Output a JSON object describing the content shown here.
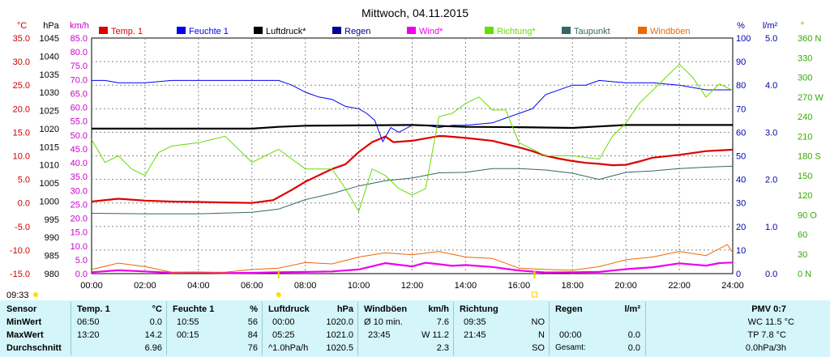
{
  "chart_data": {
    "type": "line",
    "title": "Mittwoch, 04.11.2015",
    "x_ticks": [
      "00:00",
      "02:00",
      "04:00",
      "06:00",
      "08:00",
      "10:00",
      "12:00",
      "14:00",
      "16:00",
      "18:00",
      "20:00",
      "22:00",
      "24:00"
    ],
    "axes": {
      "temp": {
        "unit": "°C",
        "min": -15,
        "max": 35,
        "step": 5,
        "ticks": [
          "35.0",
          "30.0",
          "25.0",
          "20.0",
          "15.0",
          "10.0",
          "5.0",
          "0.0",
          "-5.0",
          "-10.0",
          "-15.0"
        ],
        "color": "#cc0000"
      },
      "pressure": {
        "unit": "hPa",
        "min": 980,
        "max": 1045,
        "step": 5,
        "ticks": [
          "1045",
          "1040",
          "1035",
          "1030",
          "1025",
          "1020",
          "1015",
          "1010",
          "1005",
          "1000",
          "995",
          "990",
          "985",
          "980"
        ],
        "color": "#000000"
      },
      "wind": {
        "unit": "km/h",
        "min": 0,
        "max": 85,
        "step": 5,
        "ticks": [
          "85.0",
          "80.0",
          "75.0",
          "70.0",
          "65.0",
          "60.0",
          "55.0",
          "50.0",
          "45.0",
          "40.0",
          "35.0",
          "30.0",
          "25.0",
          "20.0",
          "15.0",
          "10.0",
          "5.0",
          "0.0"
        ],
        "color": "#cc00cc"
      },
      "humidity": {
        "unit": "%",
        "min": 0,
        "max": 100,
        "step": 10,
        "ticks": [
          "100",
          "90",
          "80",
          "70",
          "60",
          "50",
          "40",
          "30",
          "20",
          "10",
          "0"
        ],
        "color": "#0000aa"
      },
      "rain": {
        "unit": "l/m²",
        "min": 0,
        "max": 5,
        "step": 1,
        "ticks": [
          "5.0",
          "4.0",
          "3.0",
          "2.0",
          "1.0",
          "0.0"
        ],
        "color": "#0000aa"
      },
      "direction": {
        "unit": "°",
        "min": 0,
        "max": 360,
        "step": 30,
        "ticks": [
          "360 N",
          "330",
          "300",
          "270 W",
          "240",
          "210",
          "180 S",
          "150",
          "120",
          "90 O",
          "60",
          "30",
          "0 N"
        ],
        "color": "#33aa00"
      }
    },
    "legend": [
      {
        "name": "Temp. 1",
        "color": "#dd0000"
      },
      {
        "name": "Feuchte 1",
        "color": "#0000ee"
      },
      {
        "name": "Luftdruck*",
        "color": "#000000"
      },
      {
        "name": "Regen",
        "color": "#000099"
      },
      {
        "name": "Wind*",
        "color": "#ee00ee"
      },
      {
        "name": "Richtung*",
        "color": "#66dd00"
      },
      {
        "name": "Taupunkt",
        "color": "#336666"
      },
      {
        "name": "Windböen",
        "color": "#ee6600"
      }
    ],
    "series": [
      {
        "name": "Temp. 1",
        "axis": "temp",
        "color": "#dd0000",
        "x": [
          0,
          1,
          2,
          3,
          4,
          5,
          6,
          6.8,
          7.5,
          8,
          9,
          9.5,
          10,
          10.5,
          11,
          11.3,
          12,
          13,
          13.2,
          14,
          15,
          16,
          16.5,
          17,
          17.5,
          18,
          18.5,
          19,
          19.5,
          20,
          20.5,
          21,
          22,
          23,
          24
        ],
        "values": [
          0.3,
          0.9,
          0.5,
          0.3,
          0.2,
          0.1,
          0.0,
          0.6,
          2.8,
          4.5,
          7.2,
          8.2,
          10.8,
          12.9,
          14.1,
          12.9,
          13.2,
          14.2,
          14.2,
          13.8,
          13.2,
          11.8,
          11.0,
          10.0,
          9.4,
          8.9,
          8.5,
          8.3,
          8.0,
          8.1,
          8.8,
          9.6,
          10.2,
          11.0,
          11.3
        ]
      },
      {
        "name": "Feuchte 1",
        "axis": "humidity",
        "color": "#0000ee",
        "x": [
          0,
          0.5,
          1,
          2,
          3,
          4,
          5,
          6,
          7,
          7.5,
          8,
          8.5,
          9,
          9.5,
          10,
          10.3,
          10.6,
          10.9,
          11.2,
          11.5,
          12,
          12.5,
          13,
          13.5,
          14,
          15,
          15.5,
          16,
          16.5,
          17,
          18,
          18.5,
          19,
          20,
          21,
          22,
          22.5,
          23,
          24
        ],
        "values": [
          82,
          82,
          81,
          81,
          82,
          82,
          82,
          82,
          82,
          80,
          77,
          75,
          74,
          71,
          70,
          68,
          65,
          56,
          62,
          60,
          63,
          63,
          62,
          63,
          63,
          64,
          66,
          68,
          70,
          76,
          80,
          80,
          82,
          81,
          81,
          80,
          79,
          78,
          78
        ]
      },
      {
        "name": "Luftdruck*",
        "axis": "pressure",
        "color": "#000000",
        "x": [
          0,
          2,
          4,
          6,
          7,
          8,
          10,
          12,
          14,
          16,
          18,
          19,
          20,
          22,
          24
        ],
        "values": [
          1020.0,
          1020.0,
          1020.0,
          1020.0,
          1020.5,
          1020.8,
          1020.9,
          1021.0,
          1020.5,
          1020.4,
          1020.2,
          1020.6,
          1021.0,
          1021.0,
          1021.0
        ]
      },
      {
        "name": "Taupunkt",
        "axis": "temp",
        "color": "#336666",
        "x": [
          0,
          2,
          4,
          6,
          7,
          8,
          9,
          10,
          11,
          12,
          13,
          14,
          15,
          16,
          17,
          18,
          19,
          20,
          21,
          22,
          23,
          24
        ],
        "values": [
          -2.2,
          -2.3,
          -2.3,
          -2.0,
          -1.3,
          0.7,
          2.0,
          3.6,
          4.7,
          5.3,
          6.4,
          6.5,
          7.3,
          7.3,
          7.0,
          6.3,
          5.0,
          6.5,
          6.8,
          7.3,
          7.6,
          7.8
        ]
      },
      {
        "name": "Wind*",
        "axis": "wind",
        "color": "#ee00ee",
        "x": [
          0,
          1,
          2,
          3,
          4,
          5,
          6,
          7,
          8,
          9,
          10,
          11,
          12,
          12.5,
          13,
          13.5,
          14,
          15,
          16,
          17,
          18,
          19,
          20,
          21,
          22,
          23,
          23.5,
          24
        ],
        "values": [
          0.5,
          1.2,
          0.8,
          0.3,
          0.4,
          0.2,
          0.3,
          0.5,
          0.6,
          0.8,
          1.5,
          3.8,
          2.6,
          3.9,
          3.4,
          2.8,
          3.1,
          2.4,
          1.1,
          0.4,
          0.5,
          0.6,
          1.6,
          2.3,
          3.7,
          2.9,
          3.8,
          4.0
        ]
      },
      {
        "name": "Windböen",
        "axis": "wind",
        "color": "#ee6600",
        "x": [
          0,
          1,
          2,
          3,
          4,
          5,
          6,
          7,
          8,
          9,
          10,
          11,
          12,
          13,
          14,
          15,
          16,
          17,
          18,
          19,
          20,
          21,
          22,
          23,
          23.8,
          24
        ],
        "values": [
          1.5,
          3.8,
          2.5,
          0.5,
          0.5,
          0.5,
          1.5,
          2.0,
          4.0,
          3.5,
          6.0,
          7.5,
          6.8,
          8.0,
          6.0,
          5.5,
          2.0,
          1.5,
          1.2,
          2.5,
          5.0,
          6.0,
          8.0,
          6.5,
          10.5,
          7.6
        ]
      },
      {
        "name": "Richtung*",
        "axis": "direction",
        "color": "#66dd00",
        "x": [
          0,
          0.5,
          1,
          1.5,
          2,
          2.5,
          3,
          4,
          5,
          6,
          7,
          8,
          9,
          9.5,
          10,
          10.5,
          11,
          11.5,
          12,
          12.5,
          13,
          13.5,
          14,
          14.5,
          15,
          15.5,
          16,
          17,
          18,
          19,
          19.5,
          20,
          20.5,
          21,
          21.5,
          22,
          22.5,
          23,
          23.5,
          24
        ],
        "values": [
          205,
          170,
          180,
          160,
          150,
          185,
          195,
          200,
          210,
          170,
          190,
          160,
          160,
          130,
          95,
          160,
          150,
          130,
          120,
          130,
          240,
          245,
          260,
          270,
          250,
          250,
          200,
          180,
          180,
          175,
          210,
          230,
          260,
          280,
          300,
          320,
          300,
          270,
          290,
          280
        ]
      }
    ],
    "rain_total": 0.0,
    "markers": [
      {
        "label": "09:33",
        "kind": "sunrise"
      },
      {
        "label": "07:00"
      },
      {
        "label": "16:35"
      }
    ]
  },
  "table": {
    "rows": [
      "Sensor",
      "MinWert",
      "MaxWert",
      "Durchschnitt"
    ],
    "temp": {
      "title": "Temp. 1",
      "unit": "°C",
      "min_time": "06:50",
      "min": "0.0",
      "max_time": "13:20",
      "max": "14.2",
      "avg": "6.96"
    },
    "hum": {
      "title": "Feuchte 1",
      "unit": "%",
      "min_time": "10:55",
      "min": "56",
      "max_time": "00:15",
      "max": "84",
      "avg": "76"
    },
    "press": {
      "title": "Luftdruck",
      "unit": "hPa",
      "min_time": "00:00",
      "min": "1020.0",
      "max_time": "05:25",
      "max": "1021.0",
      "avg_label": "^1.0hPa/h",
      "avg": "1020.5"
    },
    "gust": {
      "title": "Windböen",
      "unit": "km/h",
      "row1_label": "Ø 10 min.",
      "row1": "7.6",
      "row2_time": "23:45",
      "row2": "W 11.2",
      "avg": "2.3"
    },
    "dir": {
      "title": "Richtung",
      "row1_time": "09:35",
      "row1": "NO",
      "row2_time": "21:45",
      "row2": "N",
      "avg": "SO"
    },
    "rain": {
      "title": "Regen",
      "unit": "l/m²",
      "row2_time": "00:00",
      "row2": "0.0",
      "avg_label": "Gesamt:",
      "avg": "0.0"
    },
    "pmv": {
      "title": "PMV 0:7",
      "wc": "WC 11.5 °C",
      "tp": "TP 7.8 °C",
      "trend": "0.0hPa/3h"
    }
  }
}
